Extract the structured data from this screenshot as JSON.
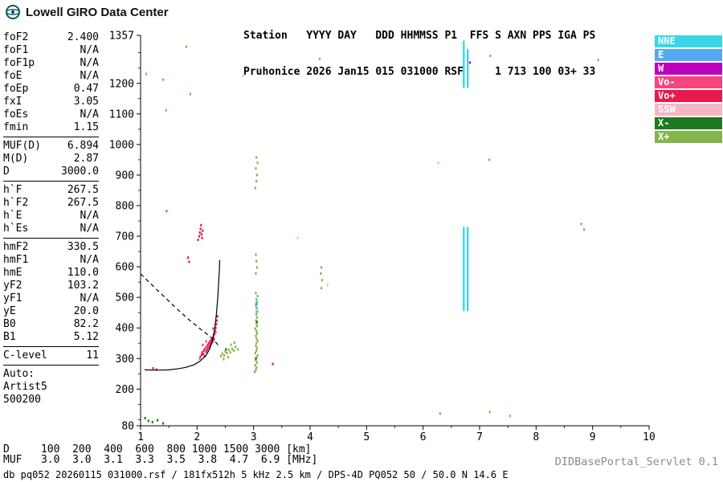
{
  "header": {
    "brand": "Lowell GIRO Data Center",
    "station_line1": "Station   YYYY DAY   DDD HHMMSS P1  FFS S AXN PPS IGA PS",
    "station_line2": "Pruhonice 2026 Jan15 015 031000 RSF     1 713 100 03+ 33"
  },
  "left_panel": {
    "groups": [
      {
        "rows": [
          [
            "foF2",
            "2.400"
          ],
          [
            "foF1",
            "N/A"
          ],
          [
            "foF1p",
            "N/A"
          ],
          [
            "foE",
            "N/A"
          ],
          [
            "foEp",
            "0.47"
          ],
          [
            "fxI",
            "3.05"
          ],
          [
            "foEs",
            "N/A"
          ],
          [
            "fmin",
            "1.15"
          ]
        ]
      },
      {
        "rows": [
          [
            "MUF(D)",
            "6.894"
          ],
          [
            "M(D)",
            "2.87"
          ],
          [
            "D",
            "3000.0"
          ]
        ]
      },
      {
        "rows": [
          [
            "h`F",
            "267.5"
          ],
          [
            "h`F2",
            "267.5"
          ],
          [
            "h`E",
            "N/A"
          ],
          [
            "h`Es",
            "N/A"
          ]
        ]
      },
      {
        "rows": [
          [
            "hmF2",
            "330.5"
          ],
          [
            "hmF1",
            "N/A"
          ],
          [
            "hmE",
            "110.0"
          ],
          [
            "yF2",
            "103.2"
          ],
          [
            "yF1",
            "N/A"
          ],
          [
            "yE",
            "20.0"
          ],
          [
            "B0",
            "82.2"
          ],
          [
            "B1",
            "5.12"
          ]
        ]
      },
      {
        "rows": [
          [
            "C-level",
            "11"
          ]
        ]
      }
    ],
    "auto_lines": [
      "Auto:",
      "Artist5",
      "500200"
    ]
  },
  "legend": [
    {
      "label": "NNE",
      "color": "#38D6E8"
    },
    {
      "label": "E",
      "color": "#55A9F2"
    },
    {
      "label": "W",
      "color": "#BC00BC"
    },
    {
      "label": "Vo-",
      "color": "#F4457F"
    },
    {
      "label": "Vo+",
      "color": "#E8194B"
    },
    {
      "label": "SSW",
      "color": "#F6B6C4"
    },
    {
      "label": "X-",
      "color": "#1E7A1E"
    },
    {
      "label": "X+",
      "color": "#84B44A"
    }
  ],
  "footer": {
    "distance_row": {
      "label": "D",
      "values": [
        "100",
        "200",
        "400",
        "600",
        "800",
        "1000",
        "1500",
        "3000"
      ],
      "unit": "[km]"
    },
    "muf_row": {
      "label": "MUF",
      "values": [
        "3.0",
        "3.0",
        "3.1",
        "3.3",
        "3.5",
        "3.8",
        "4.7",
        "6.9"
      ],
      "unit": "[MHz]"
    },
    "status_line": "db pq052 20260115 031000.rsf / 181fx512h 5 kHz 2.5 km / DPS-4D PQ052 50 / 50.0 N 14.6 E",
    "servlet_version": "DIDBasePortal_Servlet 0.1"
  },
  "chart_data": {
    "type": "scatter",
    "title": "",
    "xlabel": "[MHz]",
    "ylabel": "[km]",
    "xlim": [
      1,
      10
    ],
    "ylim": [
      80,
      1357
    ],
    "x_ticks": [
      1,
      2,
      3,
      4,
      5,
      6,
      7,
      8,
      9,
      10
    ],
    "y_ticks": [
      80,
      200,
      300,
      400,
      500,
      600,
      700,
      800,
      900,
      1000,
      1100,
      1200,
      1357
    ],
    "grid": false,
    "legend_position": "right",
    "series": [
      {
        "name": "Vo+",
        "color": "#E8194B",
        "points": [
          [
            2.06,
            306
          ],
          [
            2.08,
            312
          ],
          [
            2.09,
            320
          ],
          [
            2.11,
            315
          ],
          [
            2.12,
            326
          ],
          [
            2.13,
            308
          ],
          [
            2.14,
            332
          ],
          [
            2.16,
            322
          ],
          [
            2.17,
            338
          ],
          [
            2.18,
            328
          ],
          [
            2.19,
            345
          ],
          [
            2.2,
            335
          ],
          [
            2.21,
            350
          ],
          [
            2.22,
            341
          ],
          [
            2.23,
            356
          ],
          [
            2.24,
            347
          ],
          [
            2.25,
            360
          ],
          [
            2.26,
            351
          ],
          [
            2.27,
            366
          ],
          [
            2.28,
            357
          ],
          [
            2.29,
            372
          ],
          [
            2.3,
            363
          ],
          [
            2.31,
            380
          ],
          [
            2.32,
            390
          ],
          [
            2.33,
            400
          ],
          [
            2.34,
            412
          ],
          [
            2.35,
            424
          ],
          [
            2.36,
            438
          ],
          [
            2.02,
            688
          ],
          [
            2.04,
            700
          ],
          [
            2.05,
            712
          ],
          [
            2.06,
            724
          ],
          [
            2.07,
            736
          ],
          [
            2.08,
            706
          ],
          [
            2.09,
            694
          ],
          [
            2.1,
            718
          ],
          [
            1.84,
            630
          ],
          [
            1.86,
            616
          ],
          [
            3.34,
            282
          ],
          [
            1.22,
            268
          ],
          [
            1.28,
            264
          ]
        ]
      },
      {
        "name": "Vo-",
        "color": "#F4457F",
        "points": [
          [
            2.05,
            300
          ],
          [
            2.1,
            344
          ],
          [
            2.16,
            356
          ],
          [
            2.28,
            398
          ],
          [
            1.46,
            782
          ],
          [
            2.33,
            386
          ]
        ]
      },
      {
        "name": "X+",
        "color": "#84B44A",
        "points": [
          [
            2.42,
            308
          ],
          [
            2.45,
            316
          ],
          [
            2.48,
            310
          ],
          [
            2.5,
            322
          ],
          [
            2.53,
            318
          ],
          [
            2.56,
            328
          ],
          [
            2.59,
            320
          ],
          [
            2.62,
            332
          ],
          [
            2.65,
            326
          ],
          [
            2.68,
            338
          ],
          [
            2.72,
            330
          ],
          [
            2.47,
            298
          ],
          [
            2.55,
            304
          ],
          [
            2.6,
            345
          ],
          [
            2.66,
            352
          ],
          [
            3.02,
            256
          ],
          [
            3.04,
            262
          ],
          [
            3.05,
            270
          ],
          [
            3.03,
            278
          ],
          [
            3.06,
            286
          ],
          [
            3.04,
            294
          ],
          [
            3.05,
            302
          ],
          [
            3.07,
            310
          ],
          [
            3.03,
            318
          ],
          [
            3.05,
            326
          ],
          [
            3.06,
            334
          ],
          [
            3.04,
            342
          ],
          [
            3.05,
            350
          ],
          [
            3.07,
            358
          ],
          [
            3.05,
            366
          ],
          [
            3.04,
            374
          ],
          [
            3.06,
            382
          ],
          [
            3.05,
            390
          ],
          [
            3.03,
            398
          ],
          [
            3.06,
            406
          ],
          [
            3.05,
            414
          ],
          [
            3.04,
            424
          ],
          [
            3.06,
            434
          ],
          [
            3.05,
            444
          ],
          [
            3.07,
            454
          ],
          [
            3.05,
            464
          ],
          [
            3.04,
            474
          ],
          [
            3.06,
            484
          ],
          [
            3.05,
            494
          ],
          [
            3.07,
            504
          ],
          [
            3.04,
            514
          ],
          [
            3.04,
            578
          ],
          [
            3.06,
            598
          ],
          [
            3.05,
            618
          ],
          [
            3.04,
            640
          ],
          [
            3.03,
            858
          ],
          [
            3.05,
            880
          ],
          [
            3.06,
            900
          ],
          [
            3.04,
            922
          ],
          [
            3.07,
            940
          ],
          [
            3.05,
            958
          ],
          [
            1.81,
            1320
          ],
          [
            4.17,
            1280
          ],
          [
            7.19,
            1290
          ],
          [
            8.8,
            740
          ],
          [
            8.85,
            722
          ],
          [
            7.17,
            950
          ],
          [
            4.2,
            530
          ],
          [
            4.21,
            556
          ],
          [
            4.19,
            578
          ],
          [
            4.2,
            598
          ],
          [
            9.1,
            1276
          ],
          [
            7.18,
            125
          ]
        ]
      },
      {
        "name": "X-",
        "color": "#1E7A1E",
        "points": [
          [
            2.51,
            330
          ],
          [
            3.05,
            478
          ],
          [
            3.04,
            300
          ],
          [
            3.06,
            420
          ],
          [
            1.08,
            105
          ],
          [
            1.14,
            96
          ],
          [
            1.21,
            92
          ],
          [
            1.3,
            98
          ],
          [
            1.4,
            88
          ]
        ]
      },
      {
        "name": "NNE",
        "color": "#38D6E8",
        "points": [
          [
            3.05,
            452
          ],
          [
            3.06,
            466
          ],
          [
            3.04,
            480
          ],
          [
            3.05,
            492
          ],
          [
            7.54,
            112
          ]
        ]
      },
      {
        "name": "E",
        "color": "#55A9F2",
        "points": [
          [
            1.1,
            1231
          ],
          [
            1.4,
            1212
          ],
          [
            1.45,
            1112
          ],
          [
            1.88,
            1165
          ],
          [
            6.3,
            120
          ]
        ]
      },
      {
        "name": "W",
        "color": "#BC00BC",
        "points": [
          [
            6.83,
            1268
          ]
        ]
      },
      {
        "name": "SSW",
        "color": "#F6B6C4",
        "points": [
          [
            6.27,
            940
          ],
          [
            4.31,
            540
          ],
          [
            3.78,
            695
          ],
          [
            2.82,
            1225
          ]
        ]
      }
    ],
    "spread_bars": [
      {
        "f": 6.72,
        "from": 1185,
        "to": 1340,
        "color": "#38D6E8"
      },
      {
        "f": 6.79,
        "from": 1185,
        "to": 1312,
        "color": "#38D6E8"
      },
      {
        "f": 6.72,
        "from": 455,
        "to": 730,
        "color": "#38D6E8"
      },
      {
        "f": 6.79,
        "from": 455,
        "to": 730,
        "color": "#38D6E8"
      }
    ],
    "profile_trace": {
      "style": "solid",
      "points": [
        [
          1.07,
          263
        ],
        [
          1.2,
          262
        ],
        [
          1.35,
          262
        ],
        [
          1.5,
          263
        ],
        [
          1.65,
          266
        ],
        [
          1.8,
          271
        ],
        [
          1.95,
          280
        ],
        [
          2.05,
          291
        ],
        [
          2.15,
          308
        ],
        [
          2.22,
          330
        ],
        [
          2.27,
          358
        ],
        [
          2.31,
          395
        ],
        [
          2.34,
          440
        ],
        [
          2.365,
          495
        ],
        [
          2.38,
          545
        ],
        [
          2.395,
          590
        ],
        [
          2.4,
          622
        ]
      ]
    },
    "topside_profile": {
      "style": "dashed",
      "points": [
        [
          1.0,
          577
        ],
        [
          1.3,
          523
        ],
        [
          1.6,
          470
        ],
        [
          1.85,
          428
        ],
        [
          2.05,
          398
        ],
        [
          2.2,
          376
        ],
        [
          2.3,
          360
        ],
        [
          2.38,
          342
        ]
      ]
    }
  }
}
